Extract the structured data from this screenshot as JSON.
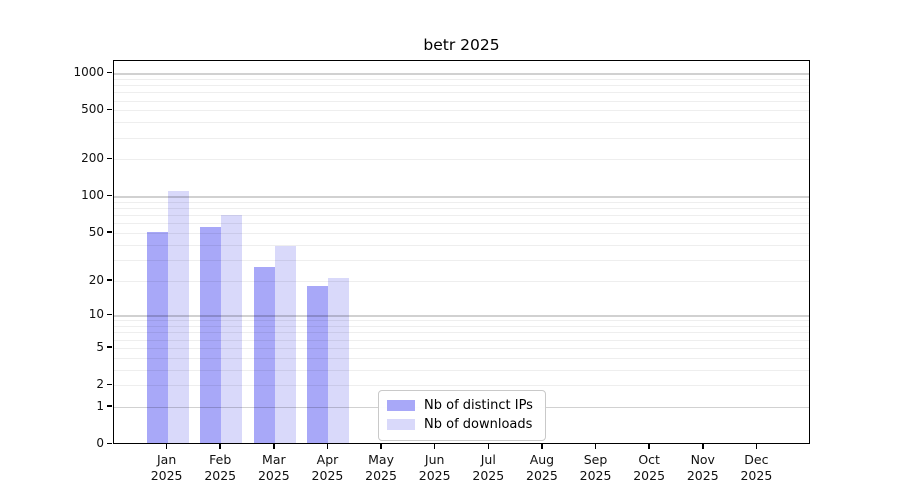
{
  "chart_data": {
    "type": "bar",
    "title": "betr 2025",
    "year_label": "2025",
    "categories": [
      "Jan",
      "Feb",
      "Mar",
      "Apr",
      "May",
      "Jun",
      "Jul",
      "Aug",
      "Sep",
      "Oct",
      "Nov",
      "Dec"
    ],
    "series": [
      {
        "name": "Nb of distinct IPs",
        "color": "#a8a8f8",
        "values": [
          51,
          56,
          26,
          18,
          null,
          null,
          null,
          null,
          null,
          null,
          null,
          null
        ]
      },
      {
        "name": "Nb of downloads",
        "color": "#d9d9fa",
        "values": [
          110,
          70,
          39,
          21,
          null,
          null,
          null,
          null,
          null,
          null,
          null,
          null
        ]
      }
    ],
    "y_ticks": [
      0,
      1,
      2,
      5,
      10,
      20,
      50,
      100,
      200,
      500,
      1000
    ],
    "y_scale": "log1p",
    "ylim": [
      0,
      1250
    ],
    "xlabel": "",
    "ylabel": "",
    "grid": "both",
    "legend_position": "lower-center-inside"
  },
  "colors": {
    "spine": "#000000",
    "major_grid": "#d2d2d2",
    "minor_grid": "#ededed",
    "background": "#ffffff"
  }
}
